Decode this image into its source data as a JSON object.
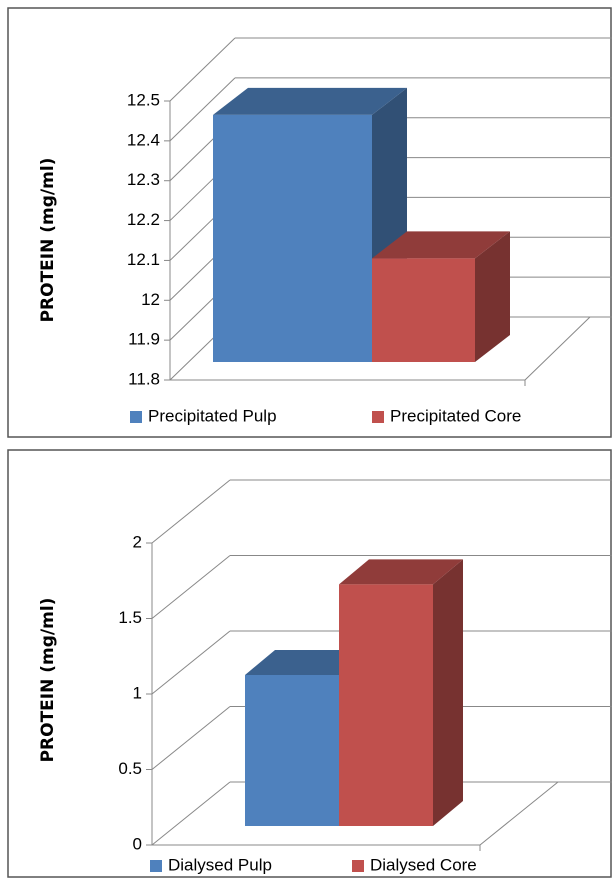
{
  "chart_data": [
    {
      "type": "bar3d",
      "y_label": "PROTEIN (mg/ml)",
      "series": [
        {
          "name": "Precipitated Pulp",
          "color": "#4f81bd",
          "values": [
            12.42
          ]
        },
        {
          "name": "Precipitated Core",
          "color": "#c0504d",
          "values": [
            12.06
          ]
        }
      ],
      "ylim": [
        11.8,
        12.5
      ],
      "yticks": [
        11.8,
        11.9,
        12,
        12.1,
        12.2,
        12.3,
        12.4,
        12.5
      ],
      "grid": true,
      "legend": "bottom"
    },
    {
      "type": "bar3d",
      "y_label": "PROTEIN (mg/ml)",
      "series": [
        {
          "name": "Dialysed Pulp",
          "color": "#4f81bd",
          "values": [
            1.0
          ]
        },
        {
          "name": "Dialysed Core",
          "color": "#c0504d",
          "values": [
            1.6
          ]
        }
      ],
      "ylim": [
        0,
        2
      ],
      "yticks": [
        0,
        0.5,
        1,
        1.5,
        2
      ],
      "grid": true,
      "legend": "bottom"
    }
  ]
}
